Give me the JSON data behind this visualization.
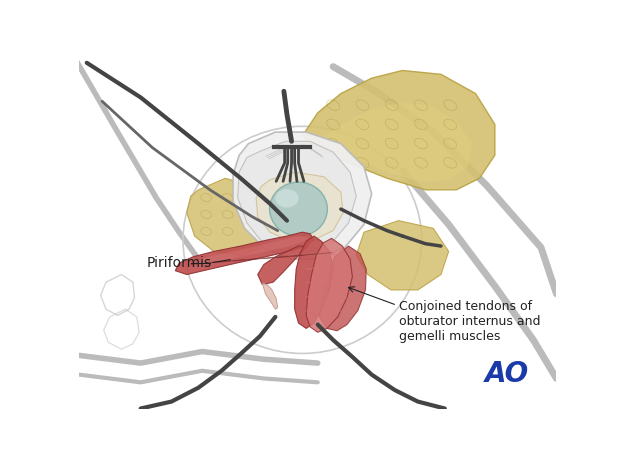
{
  "background_color": "#ffffff",
  "figure_width": 6.2,
  "figure_height": 4.59,
  "dpi": 100,
  "label_piriformis": "Piriformis",
  "label_conjoined": "Conjoined tendons of\nobturator internus and\ngemelli muscles",
  "ao_color": "#1a3aaa",
  "ao_text": "AO",
  "label_fontsize": 9,
  "ao_fontsize": 20,
  "fatty_color": "#d4c070",
  "fatty_edge": "#b8a040",
  "muscle_red": "#c05050",
  "muscle_red_light": "#d47575",
  "muscle_red_dark": "#903030",
  "muscle_pink": "#e8a090",
  "capsule_gray": "#d8d8d8",
  "capsule_white": "#f0f0f0",
  "capsule_blue": "#aac8c4",
  "bone_cream": "#e8e0c8",
  "line_dark": "#444444",
  "line_mid": "#666666",
  "line_gray": "#999999",
  "line_lgray": "#bbbbbb",
  "line_vlgray": "#cccccc"
}
